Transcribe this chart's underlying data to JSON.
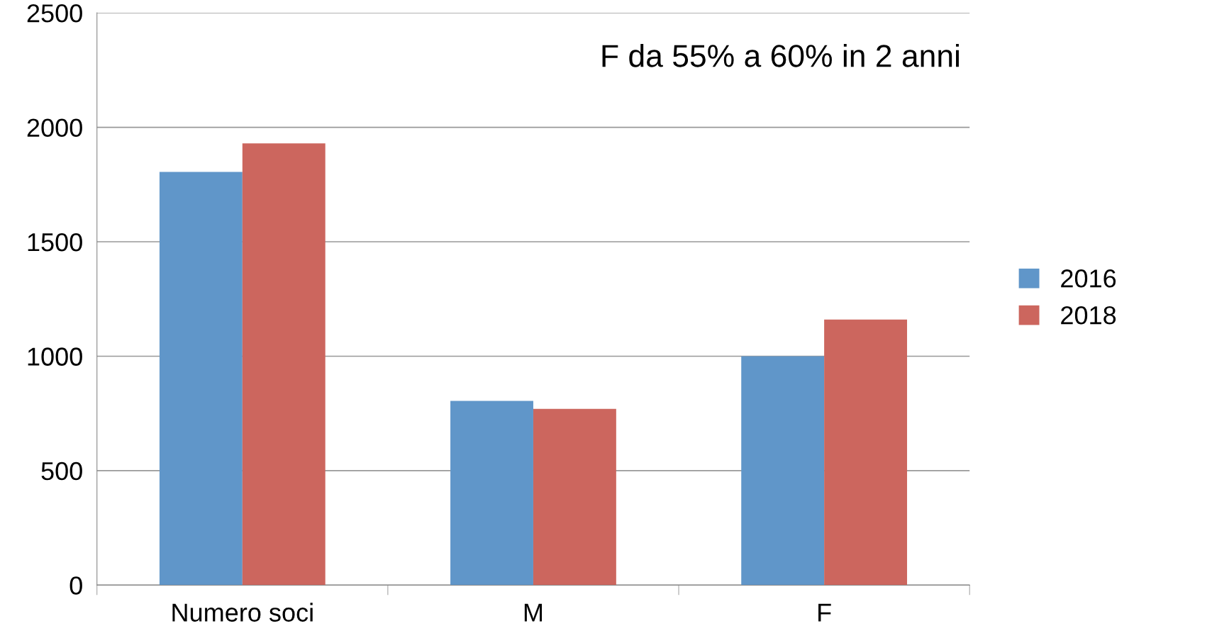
{
  "chart_data": {
    "type": "bar",
    "categories": [
      "Numero soci",
      "M",
      "F"
    ],
    "series": [
      {
        "name": "2016",
        "color": "#6096c9",
        "values": [
          1805,
          805,
          1000
        ]
      },
      {
        "name": "2018",
        "color": "#cc665e",
        "values": [
          1930,
          770,
          1160
        ]
      }
    ],
    "ylim": [
      0,
      2500
    ],
    "yticks": [
      0,
      500,
      1000,
      1500,
      2000,
      2500
    ],
    "grid": "y",
    "legend": "right",
    "annotations": [
      "F da 55% a 60% in 2 anni"
    ]
  }
}
